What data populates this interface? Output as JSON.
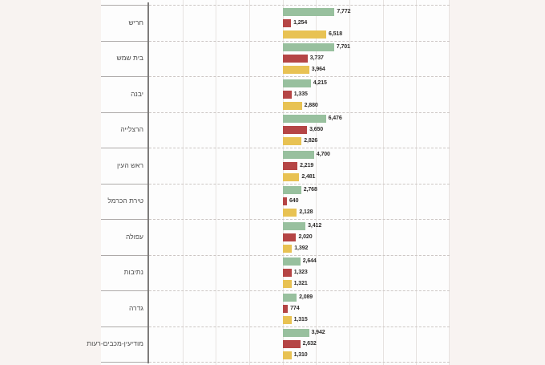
{
  "page": {
    "background_color": "#f8f3f1",
    "plot_background_color": "#fdfdfd"
  },
  "chart_data": {
    "type": "bar",
    "orientation": "horizontal",
    "text_direction": "rtl",
    "title": "",
    "xlabel": "",
    "ylabel": "",
    "xlim": [
      0,
      25000
    ],
    "gridlines_every": 5000,
    "grid": "on",
    "legend_position": "none",
    "categories": [
      "חריש",
      "בית שמש",
      "יבנה",
      "הרצלייה",
      "ראש העין",
      "טירת הכרמל",
      "עפולה",
      "נתיבות",
      "גדרה",
      "מודיעין-מכבים-רעות"
    ],
    "series": [
      {
        "name": "series-green",
        "color": "#98c09e",
        "values": [
          7772,
          7701,
          4215,
          6476,
          4700,
          2768,
          3412,
          2644,
          2089,
          3942
        ]
      },
      {
        "name": "series-red",
        "color": "#b54545",
        "values": [
          1254,
          3737,
          1335,
          3650,
          2219,
          640,
          2020,
          1323,
          774,
          2632
        ]
      },
      {
        "name": "series-yellow",
        "color": "#e8c253",
        "values": [
          6518,
          3964,
          2880,
          2826,
          2481,
          2128,
          1392,
          1321,
          1315,
          1310
        ]
      }
    ],
    "colors": {
      "axis_line": "#7e7c7b",
      "row_separator": "#ccc6c4",
      "vertical_gridline": "#e7e3e1",
      "category_label_text": "#4f4f4f",
      "value_label_text": "#2e2c2b",
      "label_cell_border": "#aeaaa9"
    }
  }
}
